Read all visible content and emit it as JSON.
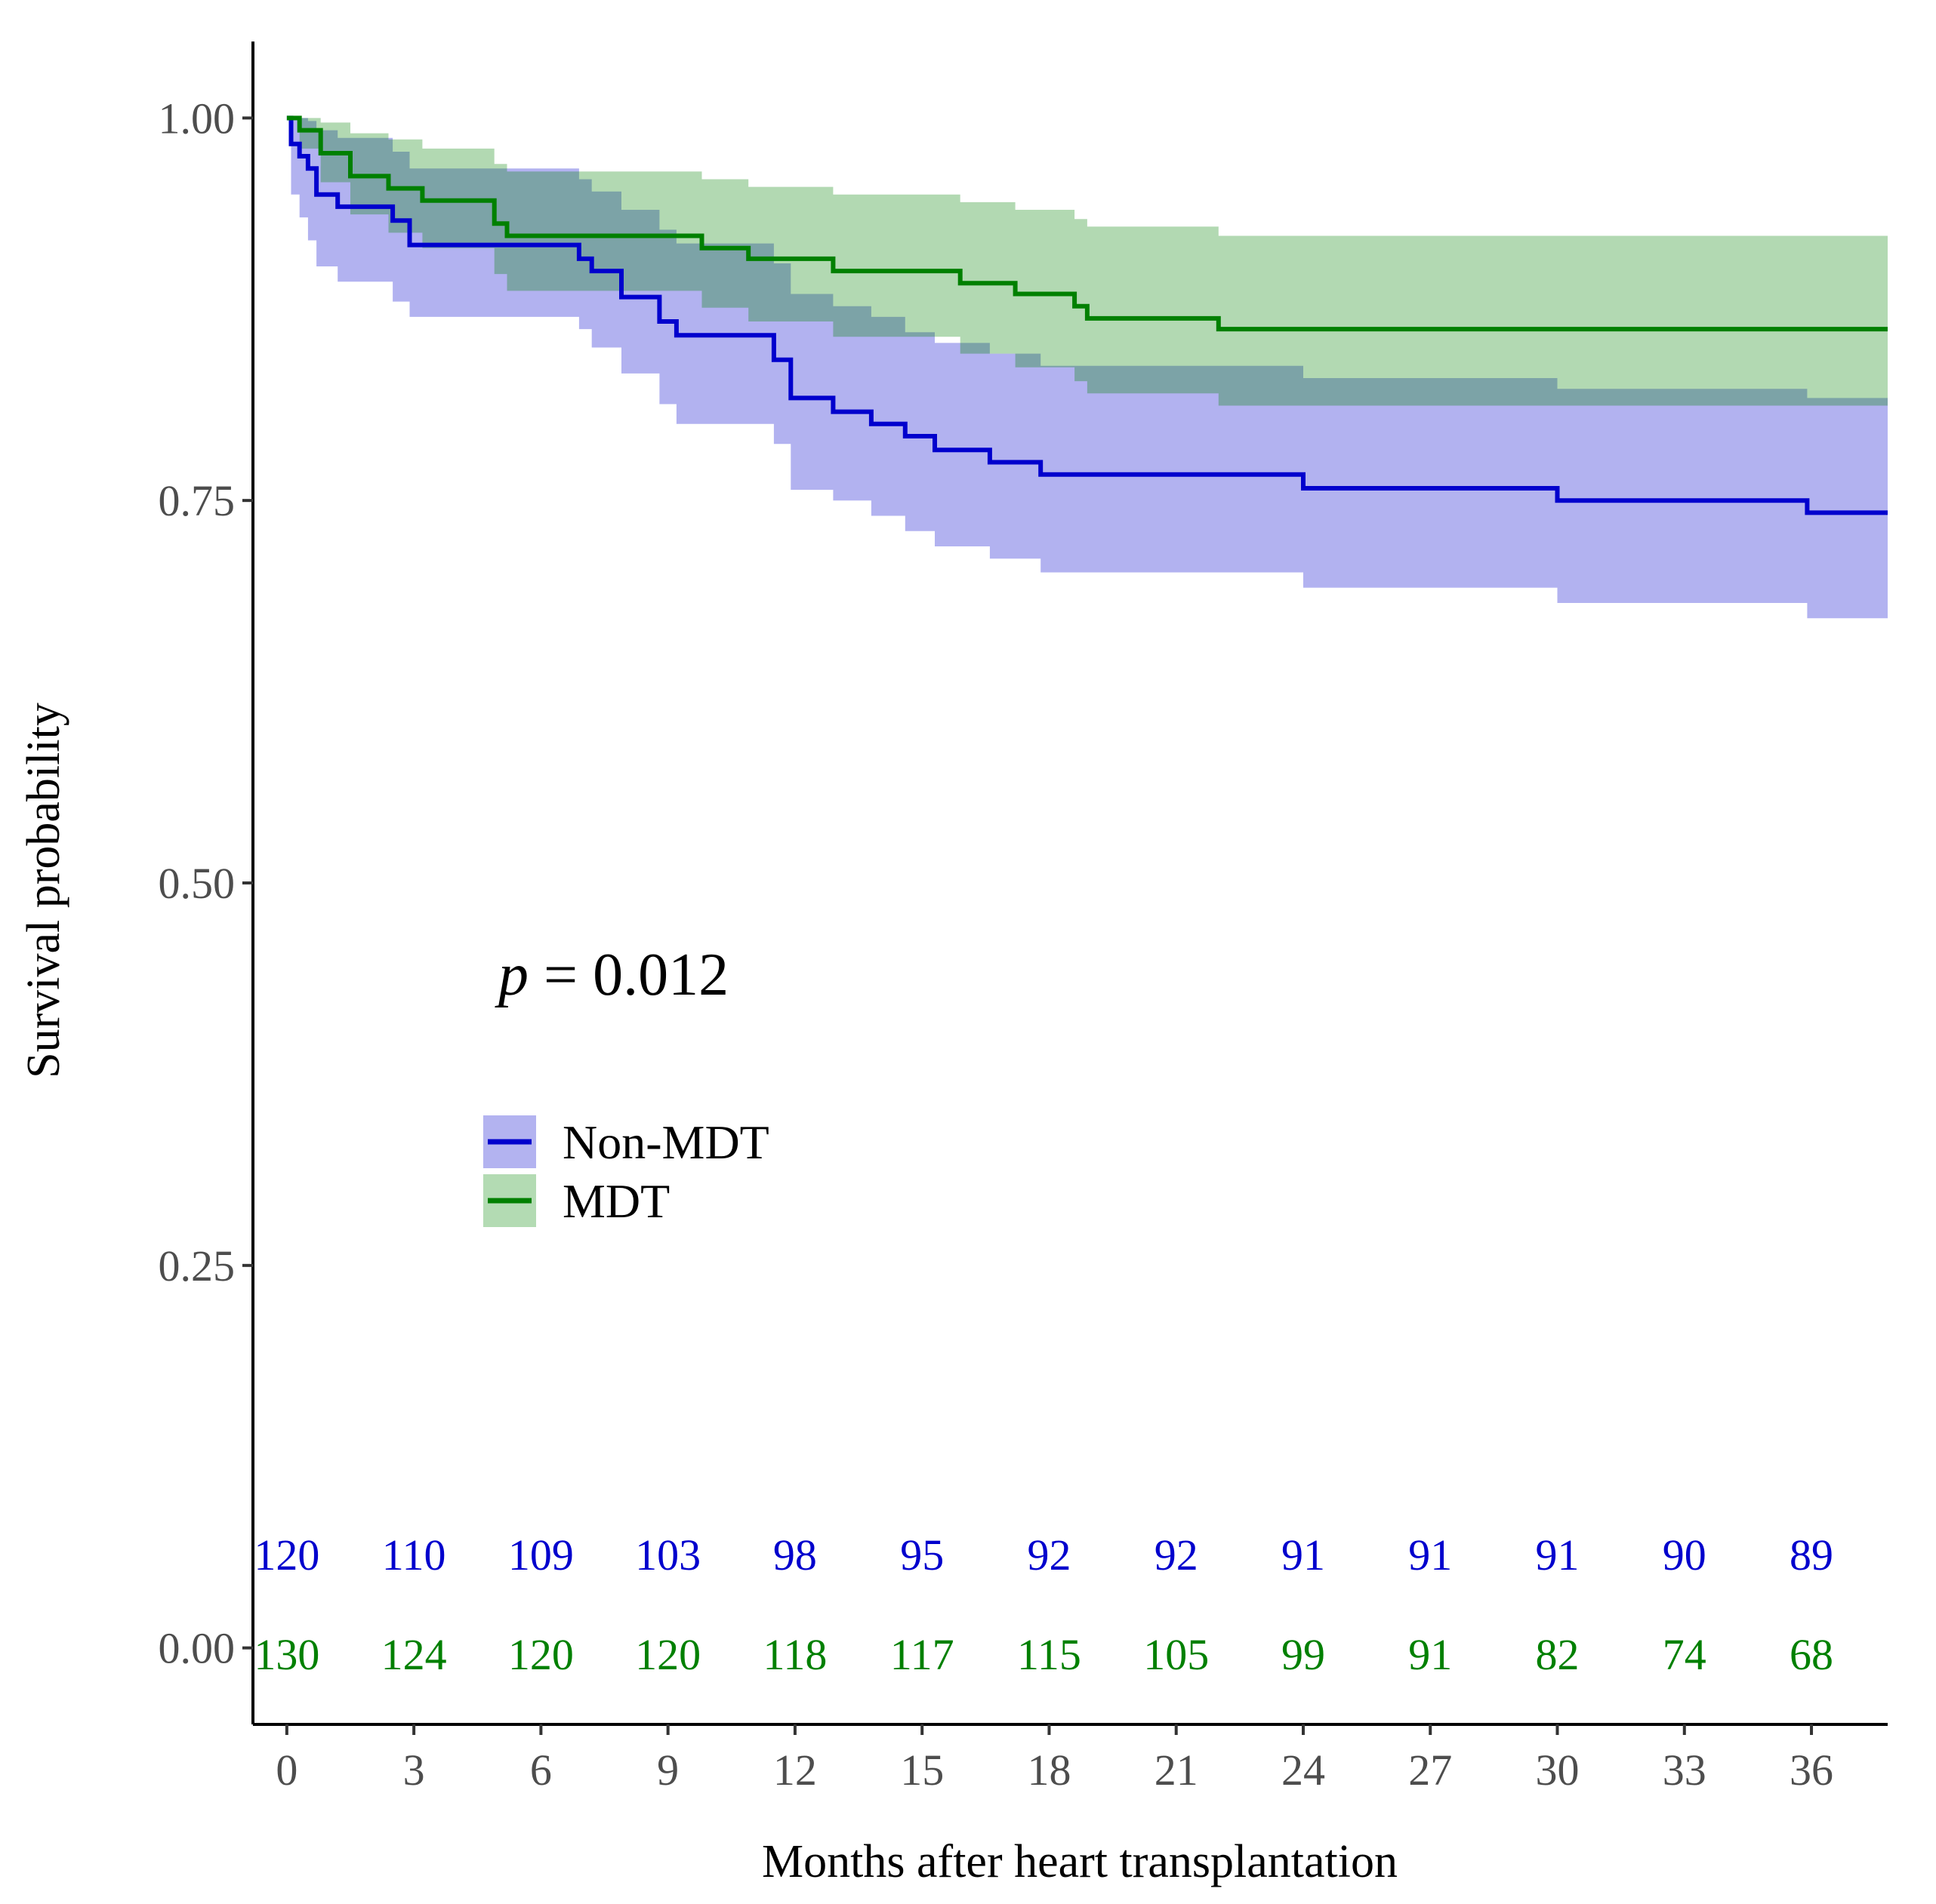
{
  "chart_data": {
    "type": "line",
    "subtype": "kaplan-meier-step",
    "title": "",
    "xlabel": "Months after heart transplantation",
    "ylabel": "Survival probability",
    "xlim": [
      -0.8,
      37.8
    ],
    "ylim": [
      -0.05,
      1.05
    ],
    "x_ticks": [
      0,
      3,
      6,
      9,
      12,
      15,
      18,
      21,
      24,
      27,
      30,
      33,
      36
    ],
    "y_ticks": [
      0,
      0.25,
      0.5,
      0.75,
      1.0
    ],
    "y_tick_labels": [
      "0.00",
      "0.25",
      "0.50",
      "0.75",
      "1.00"
    ],
    "grid": false,
    "pvalue": {
      "symbol": "p",
      "text": " = 0.012"
    },
    "legend_position": "center-left",
    "series": [
      {
        "name": "Non-MDT",
        "color": "#0000cd",
        "ci_color": "#b3b3f0",
        "x": [
          0,
          0.1,
          0.3,
          0.5,
          0.7,
          1.2,
          2.5,
          2.9,
          6.9,
          7.2,
          7.9,
          8.8,
          9.2,
          11.5,
          11.9,
          12.9,
          13.8,
          14.6,
          15.3,
          16.6,
          17.8,
          24.0,
          30.0,
          35.9,
          37.8
        ],
        "y": [
          1.0,
          0.983,
          0.975,
          0.967,
          0.95,
          0.942,
          0.933,
          0.917,
          0.908,
          0.9,
          0.883,
          0.867,
          0.858,
          0.842,
          0.817,
          0.808,
          0.8,
          0.792,
          0.783,
          0.775,
          0.767,
          0.758,
          0.75,
          0.742,
          0.742
        ],
        "lower": [
          1.0,
          0.95,
          0.935,
          0.92,
          0.903,
          0.893,
          0.88,
          0.87,
          0.862,
          0.85,
          0.833,
          0.813,
          0.8,
          0.787,
          0.757,
          0.75,
          0.74,
          0.73,
          0.72,
          0.712,
          0.703,
          0.693,
          0.683,
          0.673,
          0.673
        ],
        "upper": [
          1.0,
          1.0,
          1.0,
          0.998,
          0.992,
          0.987,
          0.978,
          0.967,
          0.96,
          0.952,
          0.94,
          0.927,
          0.918,
          0.905,
          0.885,
          0.877,
          0.87,
          0.86,
          0.853,
          0.846,
          0.838,
          0.83,
          0.823,
          0.817,
          0.817
        ],
        "risk_table": [
          120,
          110,
          109,
          103,
          98,
          95,
          92,
          92,
          91,
          91,
          91,
          90,
          89
        ]
      },
      {
        "name": "MDT",
        "color": "#008000",
        "ci_color": "#b3dbb3",
        "x": [
          0,
          0.3,
          0.8,
          1.5,
          2.4,
          3.2,
          4.9,
          5.2,
          9.8,
          10.9,
          12.9,
          15.9,
          17.2,
          18.6,
          18.9,
          22.0,
          37.8
        ],
        "y": [
          1.0,
          0.992,
          0.977,
          0.962,
          0.954,
          0.946,
          0.931,
          0.923,
          0.915,
          0.908,
          0.9,
          0.892,
          0.885,
          0.877,
          0.869,
          0.862,
          0.862
        ],
        "lower": [
          1.0,
          0.98,
          0.958,
          0.937,
          0.925,
          0.915,
          0.898,
          0.887,
          0.876,
          0.867,
          0.857,
          0.846,
          0.837,
          0.828,
          0.82,
          0.812,
          0.812
        ],
        "upper": [
          1.0,
          1.0,
          0.997,
          0.99,
          0.986,
          0.98,
          0.97,
          0.965,
          0.96,
          0.955,
          0.95,
          0.945,
          0.94,
          0.934,
          0.929,
          0.923,
          0.923
        ],
        "risk_table": [
          130,
          124,
          120,
          120,
          118,
          117,
          115,
          105,
          99,
          91,
          82,
          74,
          68
        ]
      }
    ]
  }
}
